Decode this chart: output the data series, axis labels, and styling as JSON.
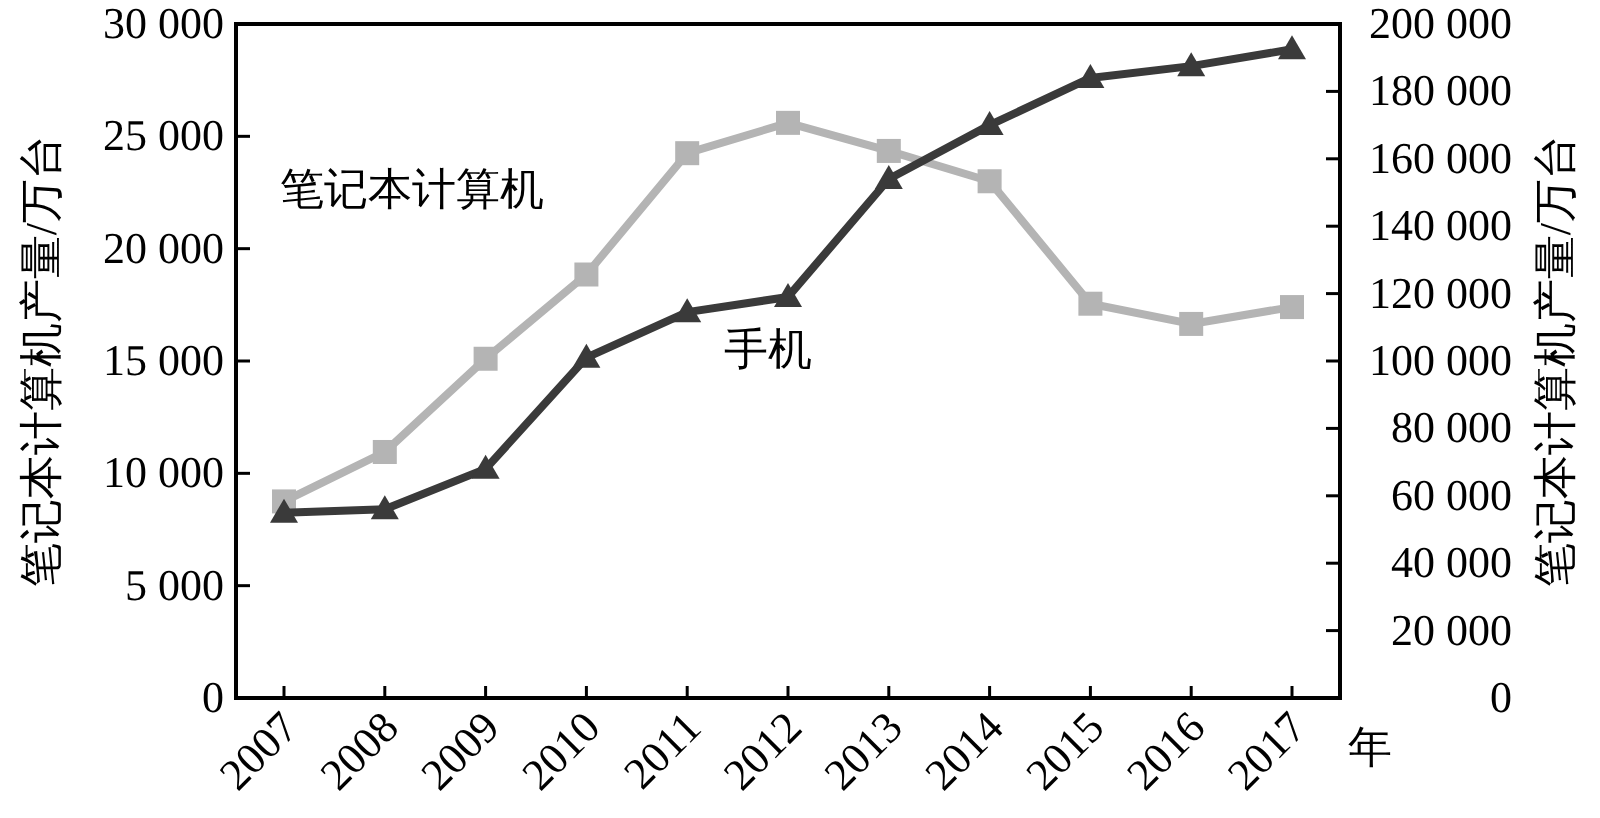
{
  "chart_data": {
    "type": "line",
    "xlabel": "年",
    "ylabel": "笔记本计算机产量/万台",
    "y2label": "笔记本计算机产量/万台",
    "categories": [
      "2007",
      "2008",
      "2009",
      "2010",
      "2011",
      "2012",
      "2013",
      "2014",
      "2015",
      "2016",
      "2017"
    ],
    "series": [
      {
        "name": "笔记本计算机",
        "color": "#b4b4b4",
        "marker": "square",
        "values": [
          8750,
          10950,
          15100,
          18850,
          24250,
          25600,
          24350,
          23000,
          17550,
          16650,
          17400
        ]
      },
      {
        "name": "手机",
        "color": "#3a3a3a",
        "marker": "triangle",
        "axis": "y2",
        "values": [
          55000,
          56000,
          68000,
          101000,
          114500,
          119000,
          154000,
          170000,
          184000,
          187500,
          192500
        ]
      }
    ],
    "ylim": [
      0,
      30000
    ],
    "yticks": [
      {
        "value": 0,
        "label": "0"
      },
      {
        "value": 5000,
        "label": "5 000"
      },
      {
        "value": 10000,
        "label": "10 000"
      },
      {
        "value": 15000,
        "label": "15 000"
      },
      {
        "value": 20000,
        "label": "20 000"
      },
      {
        "value": 25000,
        "label": "25 000"
      },
      {
        "value": 30000,
        "label": "30 000"
      }
    ],
    "y2lim": [
      0,
      200000
    ],
    "y2ticks": [
      {
        "value": 0,
        "label": "0"
      },
      {
        "value": 20000,
        "label": "20 000"
      },
      {
        "value": 40000,
        "label": "40 000"
      },
      {
        "value": 60000,
        "label": "60 000"
      },
      {
        "value": 80000,
        "label": "80 000"
      },
      {
        "value": 100000,
        "label": "100 000"
      },
      {
        "value": 120000,
        "label": "120 000"
      },
      {
        "value": 140000,
        "label": "140 000"
      },
      {
        "value": 160000,
        "label": "160 000"
      },
      {
        "value": 180000,
        "label": "180 000"
      },
      {
        "value": 200000,
        "label": "200 000"
      }
    ],
    "grid": false,
    "legend": false
  }
}
